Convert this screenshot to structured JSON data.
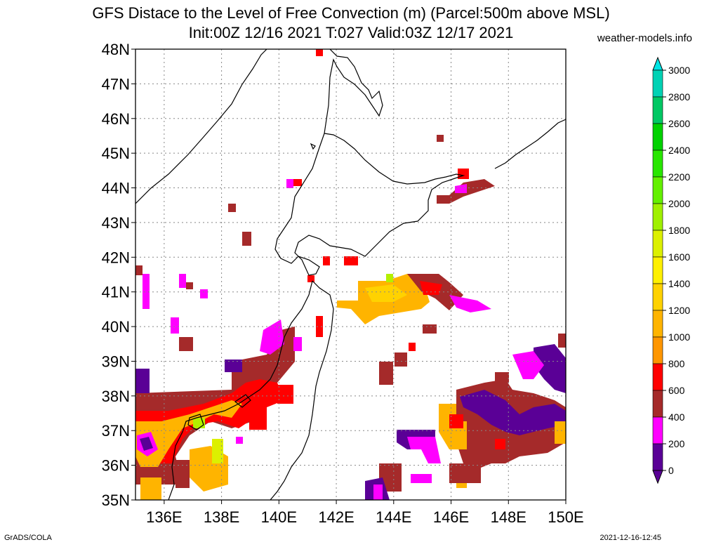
{
  "map": {
    "title": "GFS Distace to the Level of Free Convection (m) (Parcel:500m above MSL)",
    "subtitle": "Init:00Z 12/16 2021 T:027 Valid:03Z 12/17 2021",
    "credit": "weather-models.info",
    "lat_labels": [
      "48N",
      "47N",
      "46N",
      "45N",
      "44N",
      "43N",
      "42N",
      "41N",
      "40N",
      "39N",
      "38N",
      "37N",
      "36N",
      "35N"
    ],
    "lon_labels": [
      "136E",
      "138E",
      "140E",
      "142E",
      "144E",
      "146E",
      "148E",
      "150E"
    ],
    "colorbar": {
      "labels": [
        "3000",
        "2800",
        "2600",
        "2400",
        "2200",
        "2000",
        "1800",
        "1600",
        "1400",
        "1200",
        "1000",
        "800",
        "600",
        "400",
        "200",
        "0"
      ],
      "colors": [
        "#00e5e5",
        "#00d2b4",
        "#00c864",
        "#00d200",
        "#28e600",
        "#64f000",
        "#a0f000",
        "#dcf000",
        "#fff000",
        "#ffd200",
        "#ffb400",
        "#ff9600",
        "#ff0000",
        "#a52a2a",
        "#ff00ff",
        "#5a0096"
      ]
    },
    "legend_colors": {
      "purple": "#5a0096",
      "magenta": "#ff00ff",
      "brown": "#a52a2a",
      "red": "#ff0000",
      "orange": "#ffb400",
      "amber": "#ff9600",
      "yellow": "#ffd200",
      "lime": "#b4f000"
    }
  },
  "footer": {
    "left": "GrADS/COLA",
    "right": "2021-12-16-12:45"
  }
}
